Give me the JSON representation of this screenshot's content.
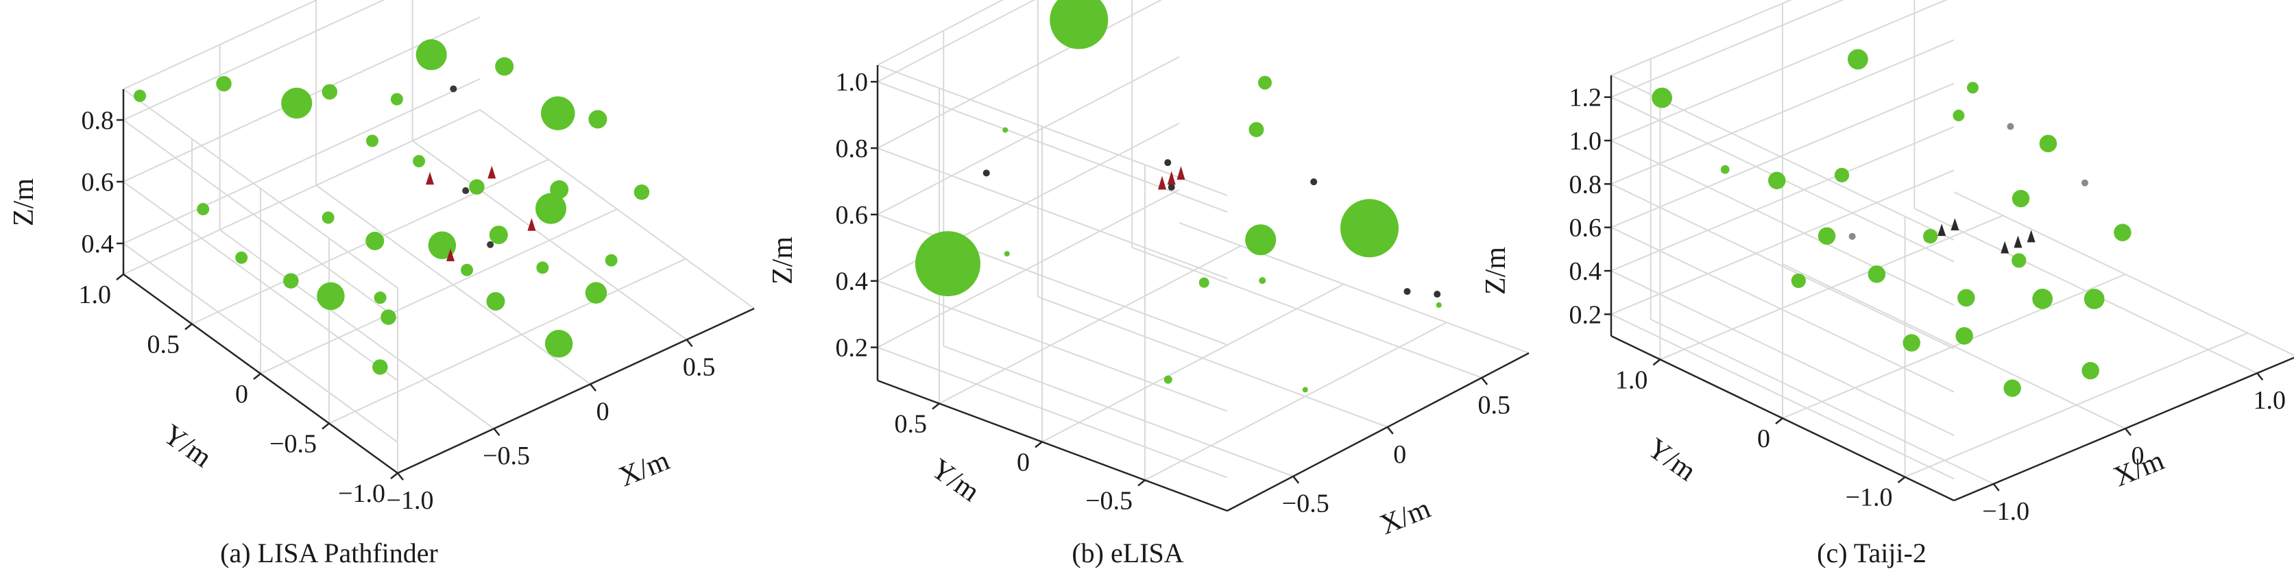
{
  "chart_data": [
    {
      "type": "scatter3d",
      "panel": "a",
      "caption": "(a) LISA Pathfinder",
      "xlabel": "X/m",
      "ylabel": "Y/m",
      "zlabel": "Z/m",
      "x_ticks": [
        -1.0,
        -0.5,
        0,
        0.5
      ],
      "x_tick_labels": [
        "−1.0",
        "−0.5",
        "0",
        "0.5"
      ],
      "y_ticks": [
        -1.0,
        -0.5,
        0,
        0.5,
        1.0
      ],
      "y_tick_labels": [
        "−1.0",
        "−0.5",
        "0",
        "0.5",
        "1.0"
      ],
      "z_ticks": [
        0.4,
        0.6,
        0.8
      ],
      "z_tick_labels": [
        "0.4",
        "0.6",
        "0.8"
      ],
      "xlim": [
        -1.0,
        0.85
      ],
      "ylim": [
        -1.0,
        1.0
      ],
      "zlim": [
        0.3,
        0.9
      ],
      "grid": true,
      "series": [
        {
          "role": "sphere markers",
          "color": "#5ec22c",
          "points": [
            {
              "x": -0.95,
              "y": 0.95,
              "z": 0.88,
              "s": 0.2
            },
            {
              "x": -0.8,
              "y": 0.7,
              "z": 0.55,
              "s": 0.2
            },
            {
              "x": -0.55,
              "y": 0.9,
              "z": 0.82,
              "s": 0.25
            },
            {
              "x": -0.35,
              "y": 0.65,
              "z": 0.78,
              "s": 0.5
            },
            {
              "x": -0.25,
              "y": 0.55,
              "z": 0.82,
              "s": 0.25
            },
            {
              "x": -0.85,
              "y": 0.35,
              "z": 0.52,
              "s": 0.2
            },
            {
              "x": -0.7,
              "y": 0.2,
              "z": 0.45,
              "s": 0.25
            },
            {
              "x": -0.6,
              "y": 0.05,
              "z": 0.42,
              "s": 0.45
            },
            {
              "x": -0.4,
              "y": 0.35,
              "z": 0.52,
              "s": 0.2
            },
            {
              "x": -0.3,
              "y": 0.15,
              "z": 0.48,
              "s": 0.3
            },
            {
              "x": -0.55,
              "y": -0.3,
              "z": 0.45,
              "s": 0.25
            },
            {
              "x": -0.2,
              "y": -0.2,
              "z": 0.55,
              "s": 0.45
            },
            {
              "x": -0.1,
              "y": -0.45,
              "z": 0.42,
              "s": 0.3
            },
            {
              "x": -0.7,
              "y": -0.45,
              "z": 0.38,
              "s": 0.25
            },
            {
              "x": 0.05,
              "y": -0.7,
              "z": 0.32,
              "s": 0.45
            },
            {
              "x": 0.25,
              "y": -0.3,
              "z": 0.38,
              "s": 0.2
            },
            {
              "x": -0.15,
              "y": 0.2,
              "z": 0.88,
              "s": 0.2
            },
            {
              "x": 0.1,
              "y": 0.3,
              "z": 0.92,
              "s": 0.5
            },
            {
              "x": -0.1,
              "y": 0.45,
              "z": 0.65,
              "s": 0.2
            },
            {
              "x": 0.0,
              "y": 0.25,
              "z": 0.62,
              "s": 0.2
            },
            {
              "x": 0.2,
              "y": -0.05,
              "z": 0.42,
              "s": 0.3
            },
            {
              "x": 0.4,
              "y": -0.15,
              "z": 0.48,
              "s": 0.5
            },
            {
              "x": 0.55,
              "y": 0.4,
              "z": 0.72,
              "s": 0.3
            },
            {
              "x": 0.65,
              "y": 0.15,
              "z": 0.62,
              "s": 0.55
            },
            {
              "x": 0.75,
              "y": 0.0,
              "z": 0.62,
              "s": 0.3
            },
            {
              "x": 0.5,
              "y": -0.45,
              "z": 0.38,
              "s": 0.2
            },
            {
              "x": 0.35,
              "y": -0.55,
              "z": 0.35,
              "s": 0.35
            },
            {
              "x": 0.55,
              "y": 0.0,
              "z": 0.45,
              "s": 0.3
            },
            {
              "x": 0.3,
              "y": 0.25,
              "z": 0.45,
              "s": 0.25
            },
            {
              "x": 0.8,
              "y": -0.25,
              "z": 0.45,
              "s": 0.25
            },
            {
              "x": -0.45,
              "y": -0.1,
              "z": 0.42,
              "s": 0.2
            },
            {
              "x": 0.0,
              "y": -0.1,
              "z": 0.38,
              "s": 0.2
            }
          ]
        },
        {
          "role": "spacecraft markers",
          "color": "#9e1a22",
          "points": [
            {
              "x": -0.05,
              "y": 0.1,
              "z": 0.62
            },
            {
              "x": 0.2,
              "y": 0.0,
              "z": 0.6
            },
            {
              "x": -0.05,
              "y": -0.05,
              "z": 0.42
            },
            {
              "x": 0.3,
              "y": -0.15,
              "z": 0.45
            }
          ]
        },
        {
          "role": "small dark markers",
          "color": "#3a3a3a",
          "points": [
            {
              "x": 0.1,
              "y": 0.05,
              "z": 0.56
            },
            {
              "x": 0.05,
              "y": -0.2,
              "z": 0.48
            },
            {
              "x": 0.25,
              "y": 0.35,
              "z": 0.75
            }
          ]
        }
      ]
    },
    {
      "type": "scatter3d",
      "panel": "b",
      "caption": "(b) eLISA",
      "xlabel": "X/m",
      "ylabel": "Y/m",
      "zlabel": "Z/m",
      "x_ticks": [
        -0.5,
        0,
        0.5
      ],
      "x_tick_labels": [
        "−0.5",
        "0",
        "0.5"
      ],
      "y_ticks": [
        -0.5,
        0,
        0.5
      ],
      "y_tick_labels": [
        "−0.5",
        "0",
        "0.5"
      ],
      "z_ticks": [
        0.2,
        0.4,
        0.6,
        0.8,
        1.0
      ],
      "z_tick_labels": [
        "0.2",
        "0.4",
        "0.6",
        "0.8",
        "1.0"
      ],
      "xlim": [
        -0.85,
        0.75
      ],
      "ylim": [
        -0.9,
        0.8
      ],
      "zlim": [
        0.1,
        1.05
      ],
      "grid": true,
      "series": [
        {
          "role": "sphere markers",
          "color": "#5ec22c",
          "points": [
            {
              "x": -0.75,
              "y": 0.55,
              "z": 0.48,
              "s": 0.95
            },
            {
              "x": 0.0,
              "y": 0.6,
              "z": 0.98,
              "s": 0.85
            },
            {
              "x": 0.45,
              "y": -0.4,
              "z": 0.45,
              "s": 0.85
            },
            {
              "x": 0.2,
              "y": -0.1,
              "z": 0.42,
              "s": 0.45
            },
            {
              "x": 0.55,
              "y": 0.2,
              "z": 0.72,
              "s": 0.2
            },
            {
              "x": 0.45,
              "y": 0.15,
              "z": 0.62,
              "s": 0.22
            },
            {
              "x": -0.1,
              "y": -0.1,
              "z": 0.38,
              "s": 0.15
            },
            {
              "x": -0.4,
              "y": -0.2,
              "z": 0.2,
              "s": 0.12
            },
            {
              "x": 0.1,
              "y": -0.2,
              "z": 0.35,
              "s": 0.1
            },
            {
              "x": -0.5,
              "y": 0.5,
              "z": 0.82,
              "s": 0.08
            },
            {
              "x": -0.6,
              "y": 0.4,
              "z": 0.5,
              "s": 0.08
            },
            {
              "x": 0.0,
              "y": -0.5,
              "z": 0.12,
              "s": 0.08
            },
            {
              "x": 0.6,
              "y": -0.6,
              "z": 0.22,
              "s": 0.08
            }
          ]
        },
        {
          "role": "spacecraft markers",
          "color": "#9e1a22",
          "points": [
            {
              "x": -0.05,
              "y": 0.15,
              "z": 0.6
            },
            {
              "x": 0.0,
              "y": 0.15,
              "z": 0.6
            },
            {
              "x": 0.05,
              "y": 0.15,
              "z": 0.6
            }
          ]
        },
        {
          "role": "small dark markers",
          "color": "#333333",
          "points": [
            {
              "x": -0.02,
              "y": 0.15,
              "z": 0.66
            },
            {
              "x": 0.0,
              "y": 0.15,
              "z": 0.58
            },
            {
              "x": 0.65,
              "y": -0.4,
              "z": 0.2
            },
            {
              "x": 0.7,
              "y": -0.5,
              "z": 0.2
            },
            {
              "x": 0.7,
              "y": 0.1,
              "z": 0.4
            },
            {
              "x": -0.6,
              "y": 0.5,
              "z": 0.72
            }
          ]
        }
      ]
    },
    {
      "type": "scatter3d",
      "panel": "c",
      "caption": "(c) Taiji-2",
      "xlabel": "X/m",
      "ylabel": "Y/m",
      "zlabel": "Z/m",
      "x_ticks": [
        -1.0,
        0,
        1.0
      ],
      "x_tick_labels": [
        "−1.0",
        "0",
        "1.0"
      ],
      "y_ticks": [
        -1.0,
        0,
        1.0
      ],
      "y_tick_labels": [
        "−1.0",
        "0",
        "1.0"
      ],
      "z_ticks": [
        0.2,
        0.4,
        0.6,
        0.8,
        1.0,
        1.2
      ],
      "z_tick_labels": [
        "0.2",
        "0.4",
        "0.6",
        "0.8",
        "1.0",
        "1.2"
      ],
      "xlim": [
        -1.3,
        1.3
      ],
      "ylim": [
        -1.4,
        1.4
      ],
      "zlim": [
        0.1,
        1.3
      ],
      "grid": true,
      "series": [
        {
          "role": "sphere markers",
          "color": "#5ec22c",
          "points": [
            {
              "x": -1.1,
              "y": 1.2,
              "z": 1.2,
              "s": 0.35
            },
            {
              "x": -0.9,
              "y": 0.9,
              "z": 0.9,
              "s": 0.15
            },
            {
              "x": -0.6,
              "y": 0.8,
              "z": 0.8,
              "s": 0.3
            },
            {
              "x": 0.2,
              "y": 1.0,
              "z": 1.1,
              "s": 0.35
            },
            {
              "x": -0.2,
              "y": 0.7,
              "z": 0.75,
              "s": 0.25
            },
            {
              "x": 0.5,
              "y": 0.5,
              "z": 0.9,
              "s": 0.2
            },
            {
              "x": 0.9,
              "y": 0.2,
              "z": 0.75,
              "s": 0.3
            },
            {
              "x": 0.6,
              "y": 0.1,
              "z": 0.6,
              "s": 0.3
            },
            {
              "x": -0.9,
              "y": 0.3,
              "z": 0.55,
              "s": 0.25
            },
            {
              "x": -0.4,
              "y": 0.2,
              "z": 0.48,
              "s": 0.3
            },
            {
              "x": 0.0,
              "y": -0.1,
              "z": 0.35,
              "s": 0.3
            },
            {
              "x": -0.6,
              "y": -0.3,
              "z": 0.35,
              "s": 0.3
            },
            {
              "x": 0.3,
              "y": -0.4,
              "z": 0.35,
              "s": 0.35
            },
            {
              "x": 0.6,
              "y": -0.5,
              "z": 0.3,
              "s": 0.35
            },
            {
              "x": -0.3,
              "y": -0.8,
              "z": 0.2,
              "s": 0.3
            },
            {
              "x": 0.2,
              "y": -0.9,
              "z": 0.18,
              "s": 0.3
            },
            {
              "x": 1.0,
              "y": -0.3,
              "z": 0.45,
              "s": 0.3
            },
            {
              "x": -0.5,
              "y": 0.5,
              "z": 0.6,
              "s": 0.3
            },
            {
              "x": 0.1,
              "y": 0.3,
              "z": 0.5,
              "s": 0.25
            },
            {
              "x": 0.7,
              "y": 0.6,
              "z": 0.95,
              "s": 0.2
            },
            {
              "x": -0.2,
              "y": -0.3,
              "z": 0.28,
              "s": 0.3
            },
            {
              "x": 0.4,
              "y": -0.1,
              "z": 0.42,
              "s": 0.25
            }
          ]
        },
        {
          "role": "spacecraft markers",
          "color": "#2b2b2b",
          "points": [
            {
              "x": -0.1,
              "y": 0.1,
              "z": 0.6
            },
            {
              "x": 0.0,
              "y": 0.1,
              "z": 0.6
            },
            {
              "x": 0.1,
              "y": 0.1,
              "z": 0.6
            },
            {
              "x": 0.2,
              "y": -0.2,
              "z": 0.55
            },
            {
              "x": 0.3,
              "y": -0.2,
              "z": 0.55
            },
            {
              "x": 0.4,
              "y": -0.2,
              "z": 0.55
            }
          ]
        },
        {
          "role": "small grey markers",
          "color": "#8a8a8a",
          "points": [
            {
              "x": 0.8,
              "y": 0.4,
              "z": 0.8
            },
            {
              "x": -0.4,
              "y": 0.4,
              "z": 0.6
            },
            {
              "x": 0.9,
              "y": -0.1,
              "z": 0.65
            }
          ]
        }
      ]
    }
  ]
}
